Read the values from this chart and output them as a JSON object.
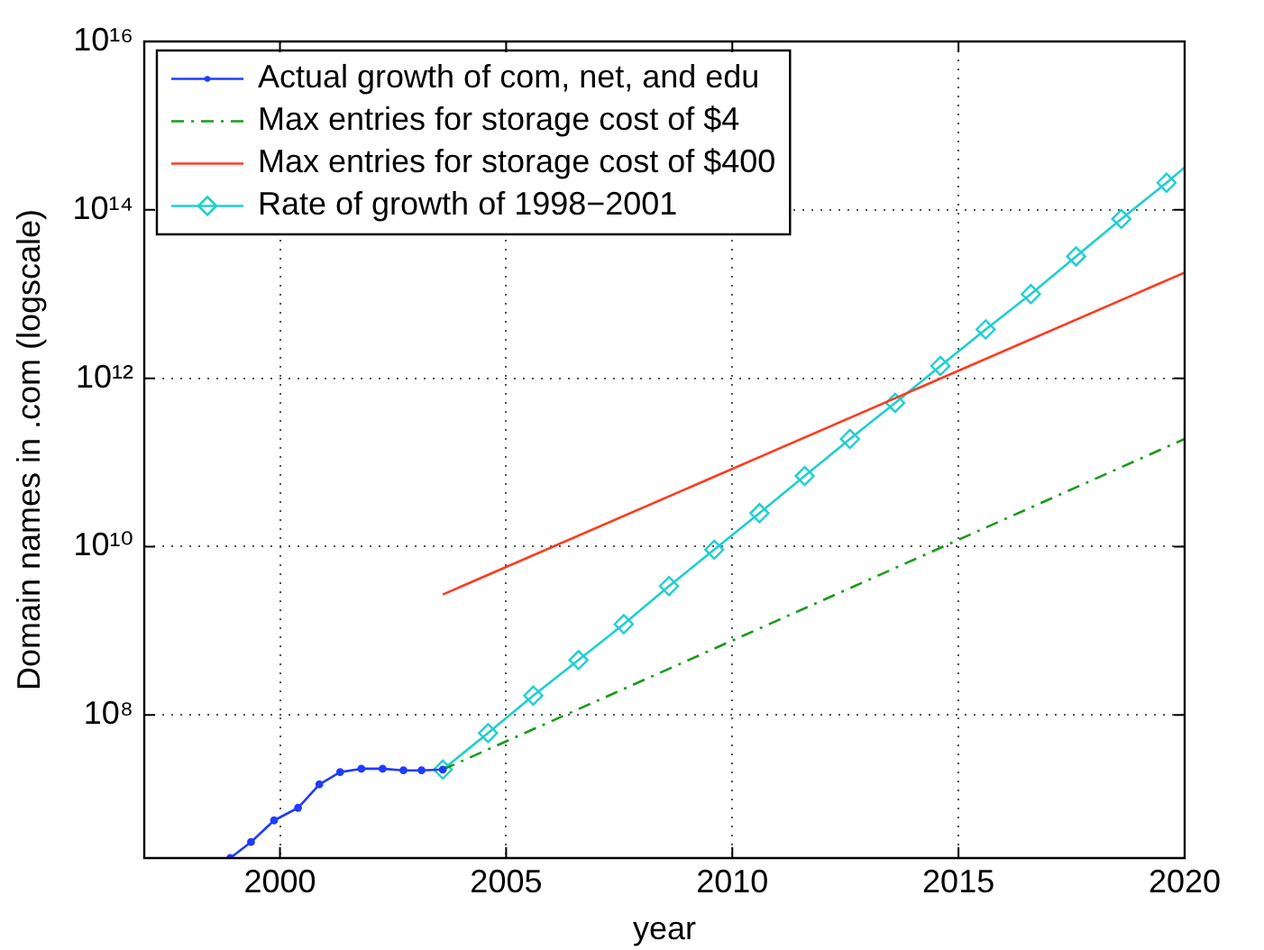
{
  "chart_data": {
    "type": "line",
    "xlabel": "year",
    "ylabel": "Domain names in .com (logscale)",
    "log": "y",
    "grid": true,
    "legend": "top left",
    "xlim": [
      1997,
      2020
    ],
    "xticks": [
      2000,
      2005,
      2010,
      2015,
      2020
    ],
    "ylim": [
      2000000,
      10000000000000000
    ],
    "yticks": [
      {
        "value": 100000000,
        "label": "10⁸"
      },
      {
        "value": 10000000000,
        "label": "10¹⁰"
      },
      {
        "value": 1000000000000,
        "label": "10¹²"
      },
      {
        "value": 100000000000000,
        "label": "10¹⁴"
      },
      {
        "value": 10000000000000000,
        "label": "10¹⁶"
      }
    ],
    "series": [
      {
        "name": "Actual growth of com, net, and edu",
        "color": "#1f3cff",
        "marker": "circle",
        "line_style": "solid",
        "x": [
          1998.9,
          1999.36,
          1999.87,
          2000.4,
          2000.87,
          2001.33,
          2001.8,
          2002.27,
          2002.73,
          2003.13,
          2003.6
        ],
        "values": [
          2000000,
          3100000,
          5600000,
          7900000,
          15000000,
          21000000,
          23000000,
          23000000,
          22000000,
          22000000,
          22500000
        ]
      },
      {
        "name": "Max entries for storage cost of $4",
        "color": "#1a9a1a",
        "marker": "none",
        "line_style": "dashed",
        "x": [
          2003.6,
          2020
        ],
        "values": [
          22500000,
          190000000000
        ]
      },
      {
        "name": "Max entries for storage cost of $400",
        "color": "#ff3b1f",
        "marker": "none",
        "line_style": "solid",
        "x": [
          2003.6,
          2020
        ],
        "values": [
          2700000000,
          18000000000000
        ]
      },
      {
        "name": "Rate of growth of 1998−2001",
        "color": "#1fcfcf",
        "marker": "diamond",
        "line_style": "solid",
        "x": [
          2003.6,
          2004.6,
          2005.6,
          2006.6,
          2007.6,
          2008.6,
          2009.6,
          2010.6,
          2011.6,
          2012.6,
          2013.6,
          2014.6,
          2015.6,
          2016.6,
          2017.6,
          2018.6,
          2019.6,
          2020
        ],
        "values": [
          22500000,
          61000000,
          170000000,
          450000000,
          1200000000,
          3400000000,
          9200000000,
          25000000000,
          69000000000,
          190000000000,
          510000000000,
          1400000000000,
          3800000000000,
          10000000000000,
          28000000000000,
          78000000000000,
          210000000000000,
          320000000000000
        ]
      }
    ]
  }
}
